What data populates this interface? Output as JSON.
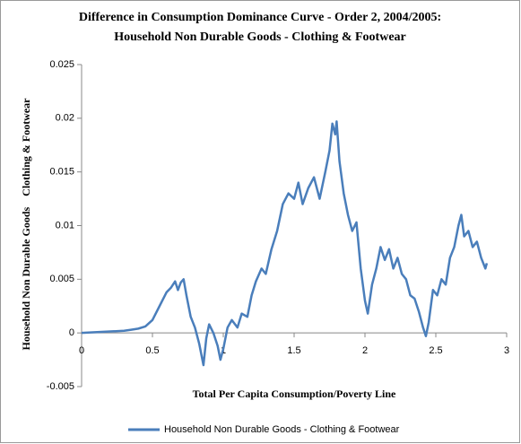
{
  "chart_data": {
    "type": "line",
    "title": "Difference in Consumption Dominance Curve - Order 2, 2004/2005:",
    "subtitle": "Household Non Durable Goods - Clothing & Footwear",
    "x_label": "Total Per Capita Consumption/Poverty Line",
    "y_label": "Household Non Durable Goods    Clothing & Footwear",
    "xlim": [
      0,
      3
    ],
    "xticks": [
      0,
      0.5,
      1,
      1.5,
      2,
      2.5,
      3
    ],
    "ylim": [
      -0.005,
      0.025
    ],
    "yticks": [
      -0.005,
      0,
      0.005,
      0.01,
      0.015,
      0.02,
      0.025
    ],
    "grid": false,
    "legend": "bottom",
    "x": [
      0,
      0.3,
      0.35,
      0.4,
      0.45,
      0.5,
      0.55,
      0.6,
      0.63,
      0.66,
      0.68,
      0.7,
      0.72,
      0.74,
      0.77,
      0.8,
      0.83,
      0.86,
      0.88,
      0.9,
      0.93,
      0.96,
      0.98,
      1.0,
      1.03,
      1.06,
      1.1,
      1.13,
      1.17,
      1.2,
      1.23,
      1.27,
      1.3,
      1.34,
      1.38,
      1.42,
      1.46,
      1.5,
      1.53,
      1.56,
      1.6,
      1.64,
      1.68,
      1.72,
      1.75,
      1.77,
      1.79,
      1.8,
      1.82,
      1.85,
      1.88,
      1.91,
      1.94,
      1.97,
      2.0,
      2.02,
      2.05,
      2.08,
      2.11,
      2.14,
      2.17,
      2.2,
      2.23,
      2.26,
      2.29,
      2.32,
      2.35,
      2.38,
      2.41,
      2.43,
      2.45,
      2.48,
      2.51,
      2.54,
      2.57,
      2.6,
      2.63,
      2.66,
      2.68,
      2.7,
      2.73,
      2.76,
      2.79,
      2.82,
      2.85,
      2.86
    ],
    "series": [
      {
        "name": "Household Non Durable Goods - Clothing & Footwear",
        "color": "#4a7ebb",
        "values": [
          0,
          0.0002,
          0.0003,
          0.0004,
          0.0006,
          0.0012,
          0.0025,
          0.0038,
          0.0042,
          0.0048,
          0.004,
          0.0047,
          0.005,
          0.0035,
          0.0015,
          0.0005,
          -0.001,
          -0.003,
          -0.0005,
          0.0008,
          0,
          -0.0012,
          -0.0025,
          -0.0015,
          0.0005,
          0.0012,
          0.0005,
          0.0018,
          0.0015,
          0.0035,
          0.0048,
          0.006,
          0.0055,
          0.0078,
          0.0095,
          0.012,
          0.013,
          0.0125,
          0.014,
          0.012,
          0.0135,
          0.0145,
          0.0125,
          0.015,
          0.017,
          0.0195,
          0.0185,
          0.0197,
          0.016,
          0.013,
          0.011,
          0.0095,
          0.0103,
          0.006,
          0.003,
          0.0018,
          0.0045,
          0.006,
          0.008,
          0.0068,
          0.0078,
          0.006,
          0.007,
          0.0055,
          0.005,
          0.0035,
          0.0032,
          0.002,
          0.0005,
          -0.0003,
          0.001,
          0.004,
          0.0035,
          0.005,
          0.0045,
          0.007,
          0.008,
          0.01,
          0.011,
          0.009,
          0.0095,
          0.008,
          0.0085,
          0.007,
          0.006,
          0.0065
        ]
      }
    ]
  }
}
